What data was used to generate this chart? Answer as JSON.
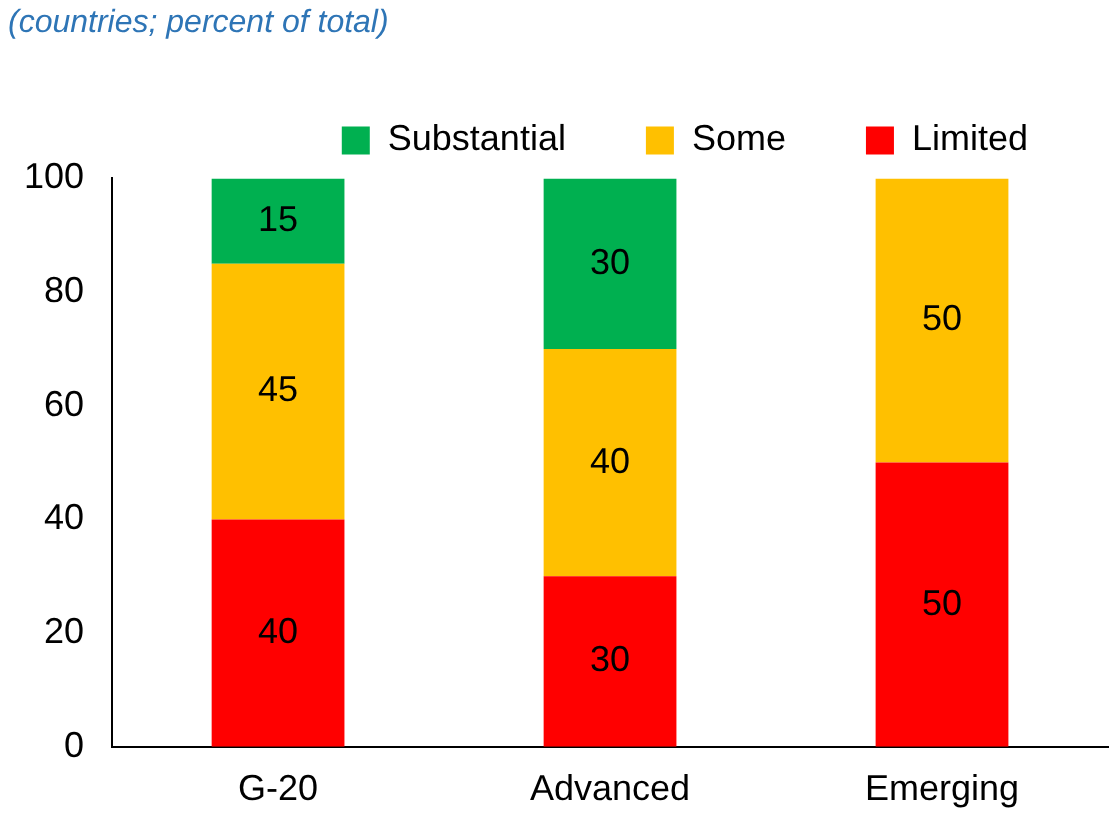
{
  "chart_data": {
    "type": "bar",
    "subtitle": "(countries; percent of total)",
    "categories": [
      "G-20",
      "Advanced",
      "Emerging"
    ],
    "stacked": true,
    "series": [
      {
        "name": "Limited",
        "color": "#ff0000",
        "values": [
          40,
          30,
          50
        ]
      },
      {
        "name": "Some",
        "color": "#ffc000",
        "values": [
          45,
          40,
          50
        ]
      },
      {
        "name": "Substantial",
        "color": "#00b050",
        "values": [
          15,
          30,
          null
        ]
      }
    ],
    "ylim": [
      0,
      100
    ],
    "yticks": [
      0,
      20,
      40,
      60,
      80,
      100
    ],
    "grid": false,
    "legend": "top right",
    "data_labels": true
  }
}
